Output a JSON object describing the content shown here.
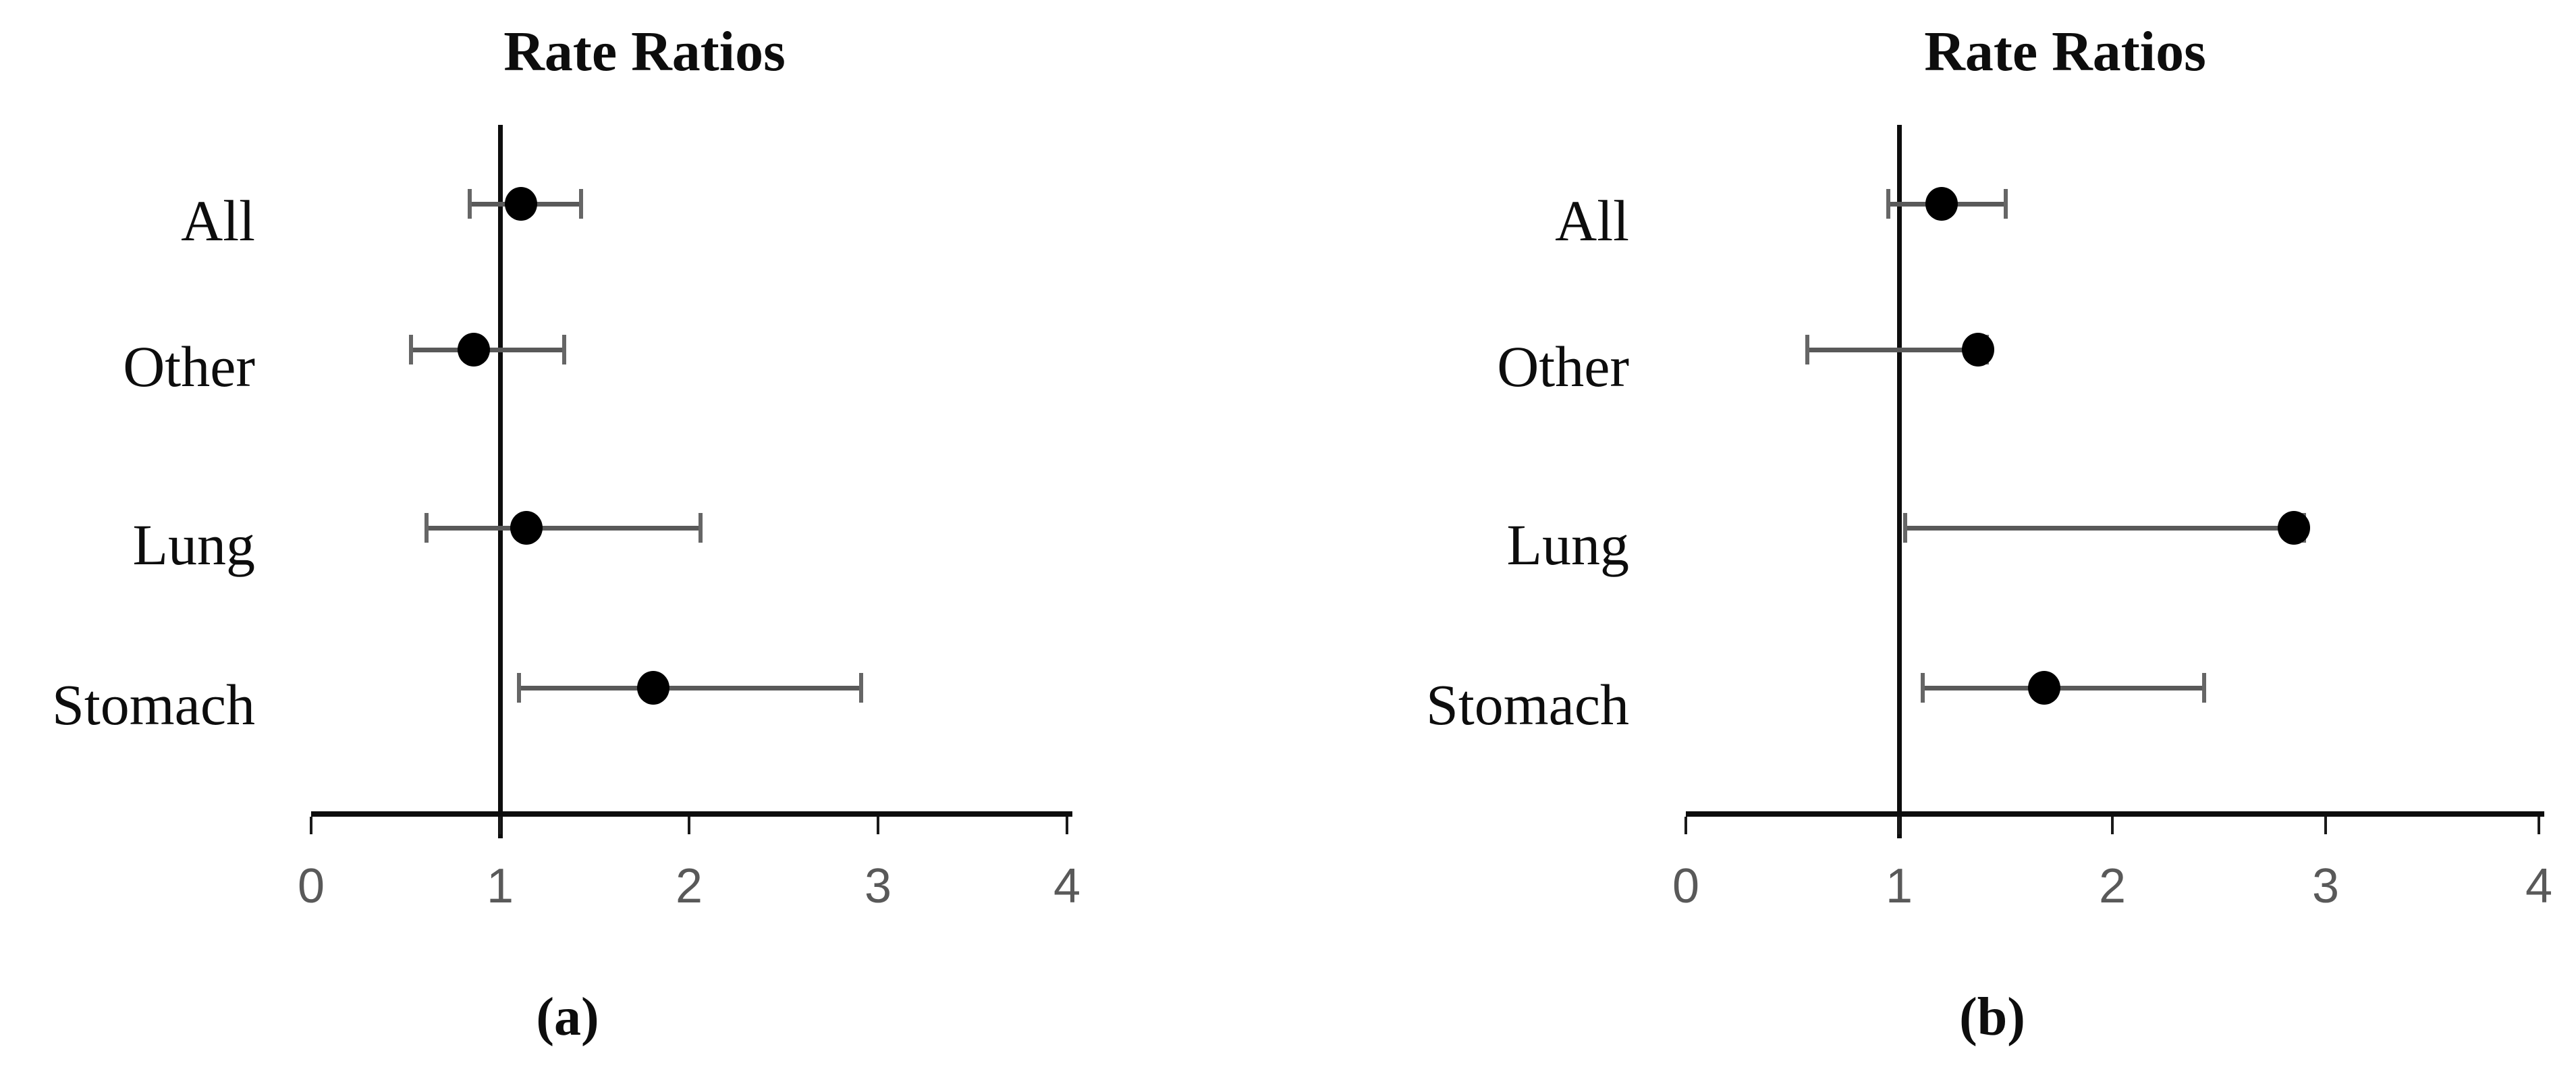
{
  "figure_background": "#ffffff",
  "colors": {
    "marker": "#000000",
    "error_bar": "#595959",
    "error_cap": "#666666",
    "axis": "#0d0d0d",
    "reference_line": "#0d0d0d",
    "tick_label": "#595959",
    "text": "#0d0d0d"
  },
  "chart_data": [
    {
      "type": "scatter",
      "variant": "forest-plot",
      "title": "Rate Ratios",
      "caption": "(a)",
      "categories": [
        "All",
        "Other",
        "Lung",
        "Stomach"
      ],
      "series": [
        {
          "name": "Rate Ratio",
          "values": [
            1.11,
            0.86,
            1.14,
            1.81
          ],
          "ci_low": [
            0.84,
            0.53,
            0.61,
            1.1
          ],
          "ci_high": [
            1.43,
            1.34,
            2.06,
            2.91
          ]
        }
      ],
      "xlabel": "",
      "ylabel": "",
      "xlim": [
        0,
        4
      ],
      "x_ticks": [
        "0",
        "1",
        "2",
        "3",
        "4"
      ],
      "reference_line_x": 1,
      "grid": false,
      "legend": "none"
    },
    {
      "type": "scatter",
      "variant": "forest-plot",
      "title": "Rate Ratios",
      "caption": "(b)",
      "categories": [
        "All",
        "Other",
        "Lung",
        "Stomach"
      ],
      "series": [
        {
          "name": "Rate Ratio",
          "values": [
            1.2,
            1.37,
            2.85,
            1.68
          ],
          "ci_low": [
            0.95,
            0.57,
            1.03,
            1.11
          ],
          "ci_high": [
            1.5,
            1.41,
            2.9,
            2.43
          ]
        }
      ],
      "xlabel": "",
      "ylabel": "",
      "xlim": [
        0,
        4
      ],
      "x_ticks": [
        "0",
        "1",
        "2",
        "3",
        "4"
      ],
      "reference_line_x": 1,
      "grid": false,
      "legend": "none"
    }
  ]
}
